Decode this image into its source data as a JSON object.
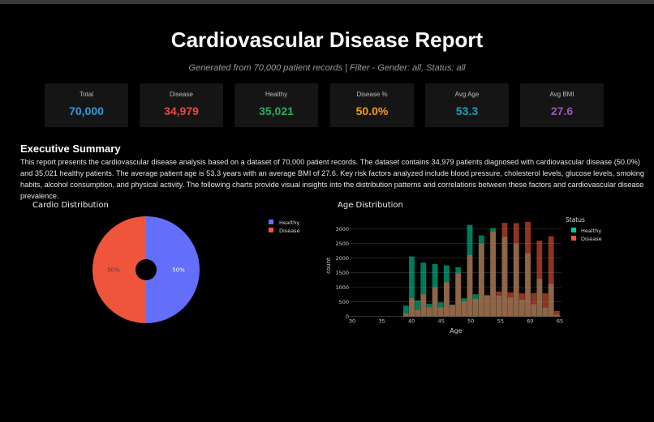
{
  "header": {
    "title": "Cardiovascular Disease Report",
    "subtitle": "Generated from 70,000 patient records  |  Filter - Gender: all, Status: all"
  },
  "cards": [
    {
      "label": "Total",
      "value": "70,000",
      "color": "#3498db"
    },
    {
      "label": "Disease",
      "value": "34,979",
      "color": "#e74c3c"
    },
    {
      "label": "Healthy",
      "value": "35,021",
      "color": "#27ae60"
    },
    {
      "label": "Disease %",
      "value": "50.0%",
      "color": "#f39c12"
    },
    {
      "label": "Avg Age",
      "value": "53.3",
      "color": "#17a2b8"
    },
    {
      "label": "Avg BMI",
      "value": "27.6",
      "color": "#9b59b6"
    }
  ],
  "summary": {
    "heading": "Executive Summary",
    "text": "This report presents the cardiovascular disease analysis based on a dataset of 70,000 patient records. The dataset contains 34,979 patients diagnosed with cardiovascular disease (50.0%) and 35,021 healthy patients. The average patient age is 53.3 years with an average BMI of 27.6. Key risk factors analyzed include blood pressure, cholesterol levels, glucose levels, smoking habits, alcohol consumption, and physical activity. The following charts provide visual insights into the distribution patterns and correlations between these factors and cardiovascular disease prevalence."
  },
  "chart_data": [
    {
      "type": "pie",
      "title": "Cardio Distribution",
      "hole": true,
      "legend": "top-right",
      "slices": [
        {
          "name": "Healthy",
          "value": 50,
          "label": "50%",
          "color": "#636efa"
        },
        {
          "name": "Disease",
          "value": 50,
          "label": "50%",
          "color": "#ef553b"
        }
      ]
    },
    {
      "type": "bar",
      "mode": "overlay histogram",
      "title": "Age Distribution",
      "xlabel": "Age",
      "ylabel": "count",
      "xlim": [
        30,
        65
      ],
      "ylim": [
        0,
        3300
      ],
      "xticks": [
        30,
        35,
        40,
        45,
        50,
        55,
        60,
        65
      ],
      "yticks": [
        0,
        500,
        1000,
        1500,
        2000,
        2500,
        3000
      ],
      "grid": true,
      "legend_title": "Status",
      "legend": "top-right",
      "x": [
        39,
        40,
        41,
        42,
        43,
        44,
        45,
        46,
        47,
        48,
        49,
        50,
        51,
        52,
        53,
        54,
        55,
        56,
        57,
        58,
        59,
        60,
        61,
        62,
        63,
        64,
        65
      ],
      "series": [
        {
          "name": "Healthy",
          "color": "#00cc96",
          "values": [
            370,
            2050,
            550,
            1840,
            430,
            1790,
            480,
            1745,
            405,
            1680,
            620,
            3130,
            760,
            2770,
            720,
            3020,
            710,
            2720,
            650,
            2490,
            570,
            2160,
            420,
            1290,
            300,
            1110,
            60
          ]
        },
        {
          "name": "Disease",
          "color": "#ef553b",
          "values": [
            110,
            620,
            220,
            760,
            310,
            1000,
            310,
            1170,
            390,
            1470,
            510,
            2100,
            600,
            2480,
            730,
            2900,
            850,
            3200,
            820,
            3190,
            790,
            3230,
            800,
            2590,
            790,
            2740,
            190
          ]
        }
      ]
    }
  ]
}
